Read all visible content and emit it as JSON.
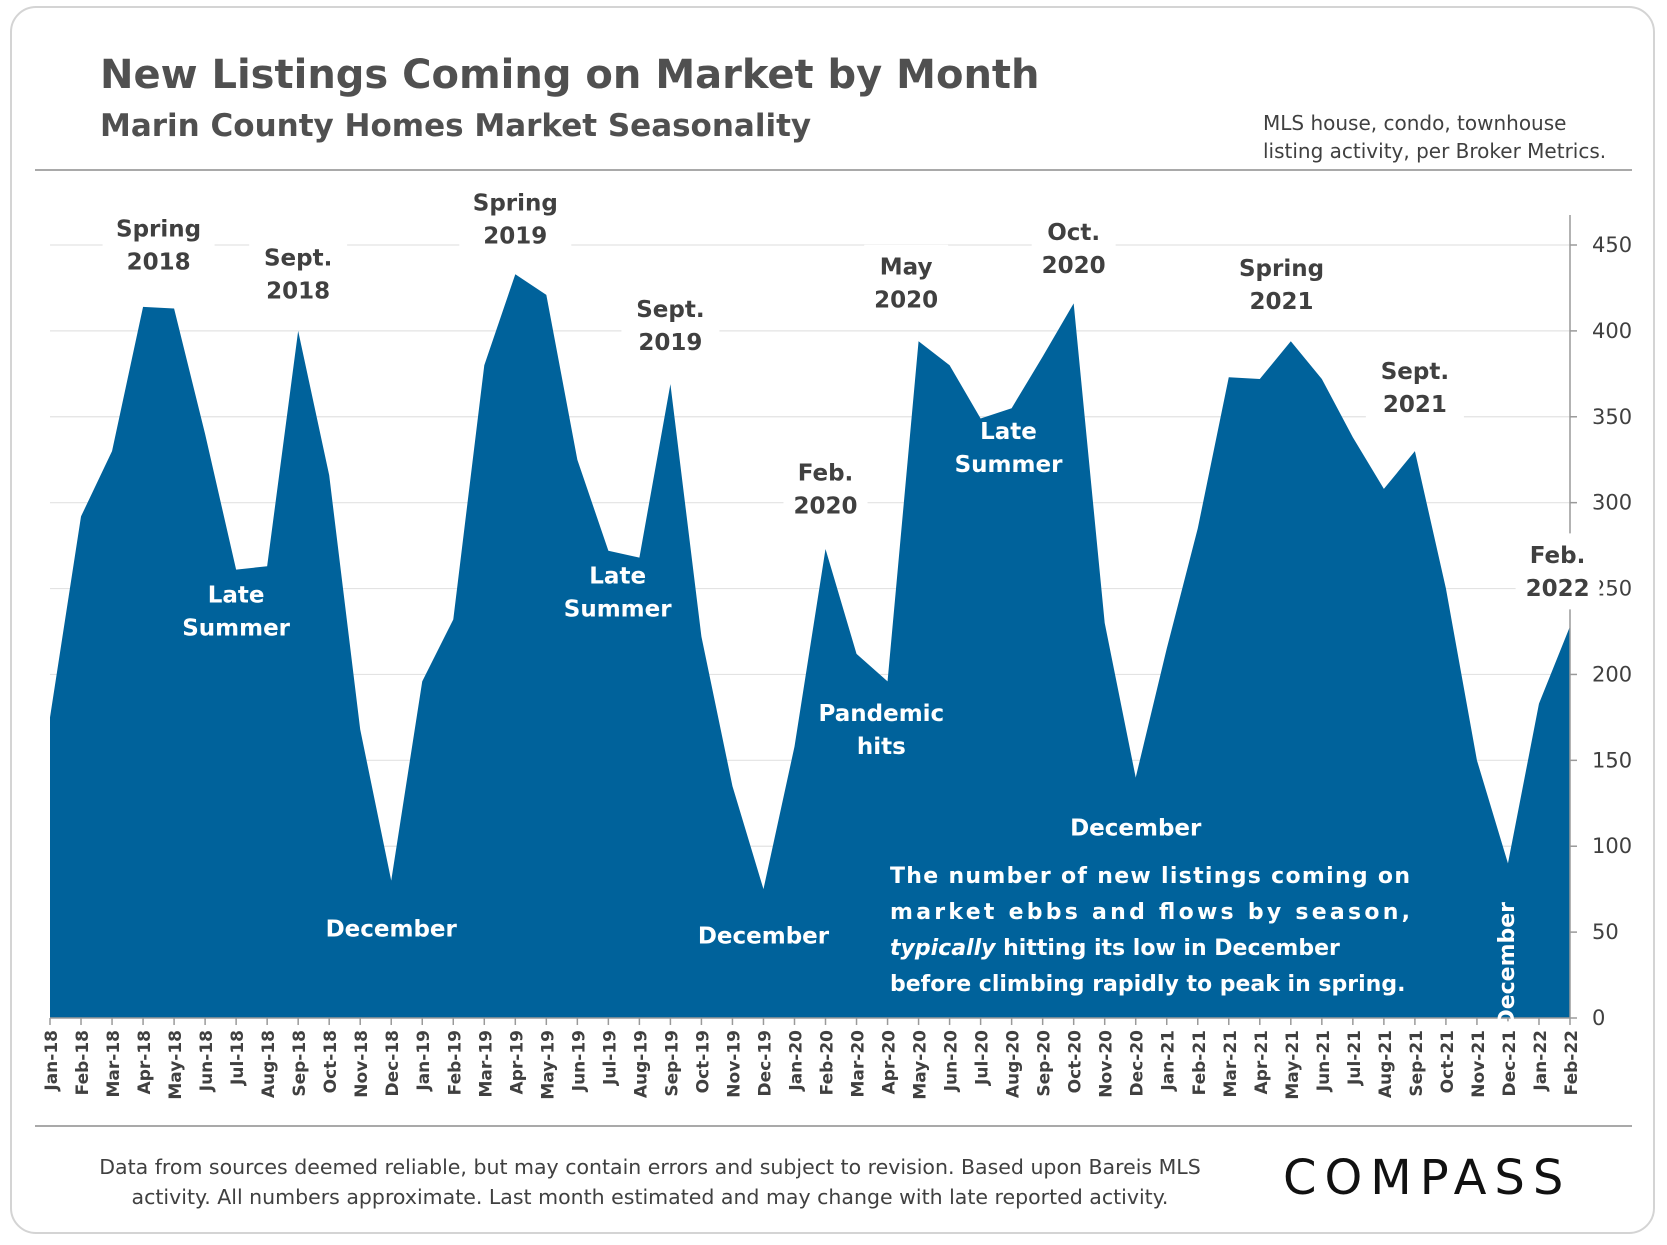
{
  "header": {
    "title": "New Listings Coming on Market by Month",
    "subtitle": "Marin County Homes Market Seasonality",
    "source_line1": "MLS house, condo, townhouse",
    "source_line2": "listing activity, per Broker Metrics."
  },
  "footer": {
    "line1": "Data from sources deemed reliable, but may contain errors and subject to revision. Based upon Bareis MLS",
    "line2": "activity. All numbers approximate. Last month estimated and may change with late reported activity.",
    "logo": "COMPASS"
  },
  "colors": {
    "area": "#00629B",
    "grid": "#e3e3e3",
    "axis": "#9a9a9a",
    "dark_label": "#404040",
    "light_label": "#ffffff"
  },
  "chart_data": {
    "type": "area",
    "x": [
      "Jan-18",
      "Feb-18",
      "Mar-18",
      "Apr-18",
      "May-18",
      "Jun-18",
      "Jul-18",
      "Aug-18",
      "Sep-18",
      "Oct-18",
      "Nov-18",
      "Dec-18",
      "Jan-19",
      "Feb-19",
      "Mar-19",
      "Apr-19",
      "May-19",
      "Jun-19",
      "Jul-19",
      "Aug-19",
      "Sep-19",
      "Oct-19",
      "Nov-19",
      "Dec-19",
      "Jan-20",
      "Feb-20",
      "Mar-20",
      "Apr-20",
      "May-20",
      "Jun-20",
      "Jul-20",
      "Aug-20",
      "Sep-20",
      "Oct-20",
      "Nov-20",
      "Dec-20",
      "Jan-21",
      "Feb-21",
      "Mar-21",
      "Apr-21",
      "May-21",
      "Jun-21",
      "Jul-21",
      "Aug-21",
      "Sep-21",
      "Oct-21",
      "Nov-21",
      "Dec-21",
      "Jan-22",
      "Feb-22"
    ],
    "values": [
      175,
      292,
      330,
      414,
      413,
      340,
      261,
      263,
      400,
      316,
      168,
      80,
      196,
      232,
      380,
      433,
      421,
      325,
      272,
      268,
      369,
      222,
      135,
      75,
      158,
      273,
      212,
      196,
      394,
      380,
      349,
      355,
      385,
      416,
      230,
      140,
      215,
      285,
      373,
      372,
      394,
      372,
      338,
      308,
      330,
      250,
      150,
      90,
      183,
      228
    ],
    "ylim": [
      0,
      450
    ],
    "yticks": [
      0,
      50,
      100,
      150,
      200,
      250,
      300,
      350,
      400,
      450
    ],
    "grid": true,
    "annotations": [
      {
        "lines": [
          "Spring",
          "2018"
        ],
        "x": 3.5,
        "y": 450,
        "style": "dark"
      },
      {
        "lines": [
          "Sept.",
          "2018"
        ],
        "x": 8,
        "y": 433,
        "style": "dark"
      },
      {
        "lines": [
          "Late",
          "Summer"
        ],
        "x": 6,
        "y": 237,
        "style": "light"
      },
      {
        "lines": [
          "December"
        ],
        "x": 11,
        "y": 52,
        "style": "light"
      },
      {
        "lines": [
          "Spring",
          "2019"
        ],
        "x": 15,
        "y": 465,
        "style": "dark"
      },
      {
        "lines": [
          "Sept.",
          "2019"
        ],
        "x": 20,
        "y": 403,
        "style": "dark"
      },
      {
        "lines": [
          "Late",
          "Summer"
        ],
        "x": 18.3,
        "y": 248,
        "style": "light"
      },
      {
        "lines": [
          "December"
        ],
        "x": 23,
        "y": 48,
        "style": "light"
      },
      {
        "lines": [
          "Feb.",
          "2020"
        ],
        "x": 25,
        "y": 308,
        "style": "dark"
      },
      {
        "lines": [
          "Pandemic",
          "hits"
        ],
        "x": 26.8,
        "y": 168,
        "style": "light"
      },
      {
        "lines": [
          "May",
          "2020"
        ],
        "x": 27.6,
        "y": 428,
        "style": "dark"
      },
      {
        "lines": [
          "Late",
          "Summer"
        ],
        "x": 30.9,
        "y": 332,
        "style": "light"
      },
      {
        "lines": [
          "Oct.",
          "2020"
        ],
        "x": 33,
        "y": 448,
        "style": "dark"
      },
      {
        "lines": [
          "December"
        ],
        "x": 35,
        "y": 111,
        "style": "light"
      },
      {
        "lines": [
          "Spring",
          "2021"
        ],
        "x": 39.7,
        "y": 427,
        "style": "dark"
      },
      {
        "lines": [
          "Sept.",
          "2021"
        ],
        "x": 44,
        "y": 367,
        "style": "dark"
      },
      {
        "lines": [
          "Feb.",
          "2022"
        ],
        "x": 48.6,
        "y": 260,
        "style": "dark"
      }
    ],
    "vertical_label": {
      "text": "December",
      "x": 47.2,
      "y": 31
    },
    "note": {
      "line1": "The number of new listings coming on",
      "line2": "market ebbs and flows by season,",
      "line3_em": "typically",
      "line3_rest": " hitting its low in December",
      "line4": "before climbing rapidly to peak in  spring."
    }
  }
}
